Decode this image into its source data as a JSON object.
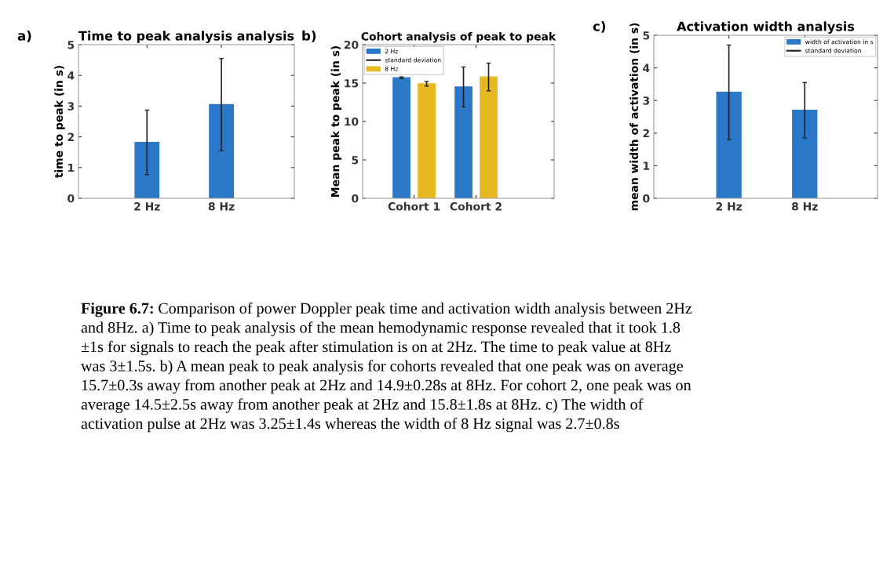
{
  "chart_data": [
    {
      "type": "bar",
      "title": "Time to peak analysis analysis",
      "ylabel": "time to peak (in s)",
      "categories": [
        "2 Hz",
        "8 Hz"
      ],
      "series": [
        {
          "color": "#2b78c8",
          "values": [
            1.82,
            3.05
          ],
          "errors": [
            1.05,
            1.5
          ]
        }
      ],
      "ylim": [
        0,
        5
      ],
      "yticks": [
        0,
        1,
        2,
        3,
        4,
        5
      ],
      "annotations": [
        "a)"
      ]
    },
    {
      "type": "bar",
      "title": "Cohort analysis of peak to peak",
      "ylabel": "Mean peak to peak (in s)",
      "categories": [
        "Cohort 1",
        "Cohort 2"
      ],
      "series": [
        {
          "name": "2 Hz",
          "color": "#2b78c8",
          "values": [
            15.7,
            14.5
          ],
          "errors": [
            0.1,
            2.6
          ]
        },
        {
          "name": "8 Hz",
          "color": "#e8b820",
          "values": [
            14.9,
            15.8
          ],
          "errors": [
            0.3,
            1.8
          ]
        }
      ],
      "ylim": [
        0,
        20
      ],
      "yticks": [
        0,
        5,
        10,
        15,
        20
      ],
      "legend": "top left",
      "annotations": [
        "b)",
        "standard deviation"
      ]
    },
    {
      "type": "bar",
      "title": "Activation width analysis",
      "ylabel": "mean width of activation (in s)",
      "categories": [
        "2 Hz",
        "8 Hz"
      ],
      "series": [
        {
          "name": "width of activation in s",
          "color": "#2b78c8",
          "values": [
            3.25,
            2.7
          ],
          "errors": [
            1.45,
            0.85
          ]
        }
      ],
      "ylim": [
        0,
        5
      ],
      "yticks": [
        0,
        1,
        2,
        3,
        4,
        5
      ],
      "legend": "top right",
      "annotations": [
        "c)",
        "standard deviation"
      ]
    },
    {
      "type": "other",
      "annotations": [
        "Figure 6.7:",
        "Comparison of power Doppler peak time and activation width analysis between 2Hz\nand 8Hz. a) Time to peak analysis of the mean hemodynamic response revealed that it took 1.8\n±1s for signals to reach the peak after stimulation is on at 2Hz. The time to peak value at 8Hz\nwas 3±1.5s. b) A mean peak to peak analysis for cohorts revealed that one peak was on average\n15.7±0.3s away from another peak at 2Hz and 14.9±0.28s at 8Hz. For cohort 2, one peak was on\naverage 14.5±2.5s away from another peak at 2Hz and 15.8±1.8s at 8Hz. c) The width of\nactivation pulse at 2Hz was 3.25±1.4s whereas the width of 8 Hz signal was 2.7±0.8s"
      ]
    }
  ]
}
